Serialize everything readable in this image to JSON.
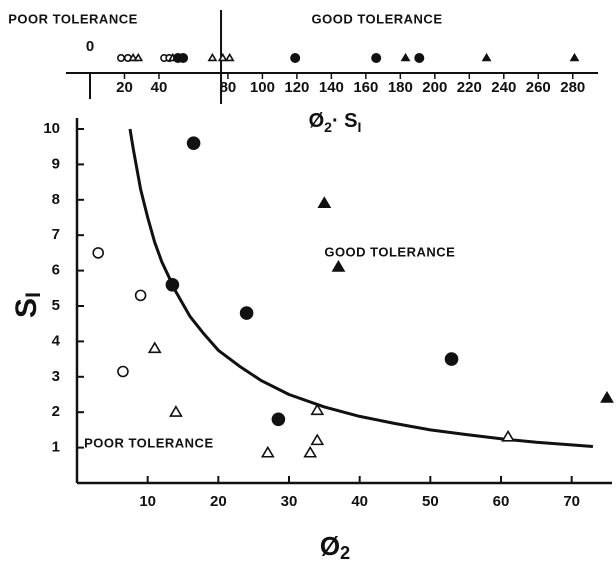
{
  "chart_data": [
    {
      "type": "strip",
      "annotations": [
        "POOR TOLERANCE",
        "GOOD TOLERANCE"
      ],
      "divider": 76,
      "xlabel": [
        "Ø",
        "2",
        "· S",
        "I"
      ],
      "xlim": [
        0,
        290
      ],
      "origin_tick": 0,
      "xticks": [
        20,
        40,
        80,
        100,
        120,
        140,
        160,
        180,
        200,
        220,
        240,
        260,
        280
      ],
      "series": [
        {
          "marker": "open-circle",
          "x": [
            18,
            22,
            43,
            46
          ]
        },
        {
          "marker": "open-triangle",
          "x": [
            25,
            28,
            48,
            71,
            77,
            81
          ]
        },
        {
          "marker": "filled-circle",
          "x": [
            51,
            54,
            119,
            166,
            191
          ]
        },
        {
          "marker": "filled-triangle",
          "x": [
            183,
            230,
            281
          ]
        }
      ]
    },
    {
      "type": "scatter",
      "annotations": [
        {
          "text": "POOR TOLERANCE",
          "x": 1,
          "y": 1.1
        },
        {
          "text": "GOOD TOLERANCE",
          "x": 35,
          "y": 6.5
        }
      ],
      "xlabel": [
        "Ø",
        "2"
      ],
      "ylabel": [
        "S",
        "I"
      ],
      "xlim": [
        0,
        75
      ],
      "ylim": [
        0,
        10
      ],
      "xticks": [
        10,
        20,
        30,
        40,
        50,
        60,
        70
      ],
      "yticks": [
        1,
        2,
        3,
        4,
        5,
        6,
        7,
        8,
        9,
        10
      ],
      "series": [
        {
          "marker": "open-circle",
          "x": [
            3,
            9,
            6.5
          ],
          "y": [
            6.5,
            5.3,
            3.15
          ]
        },
        {
          "marker": "filled-circle",
          "x": [
            16.5,
            13.5,
            24,
            28.5,
            53
          ],
          "y": [
            9.6,
            5.6,
            4.8,
            1.8,
            3.5
          ]
        },
        {
          "marker": "open-triangle",
          "x": [
            11,
            14,
            27,
            33,
            34,
            34,
            61
          ],
          "y": [
            3.8,
            2,
            0.85,
            0.85,
            2.05,
            1.2,
            1.3
          ]
        },
        {
          "marker": "filled-triangle",
          "x": [
            35,
            37,
            75
          ],
          "y": [
            7.9,
            6.1,
            2.4
          ]
        }
      ],
      "curve": {
        "x": [
          7.5,
          8,
          9,
          10,
          11,
          12,
          14,
          16,
          18,
          20,
          23,
          26,
          30,
          35,
          40,
          45,
          50,
          55,
          60,
          65,
          73
        ],
        "y": [
          10,
          9.4,
          8.3,
          7.5,
          6.8,
          6.25,
          5.4,
          4.7,
          4.2,
          3.75,
          3.3,
          2.9,
          2.5,
          2.15,
          1.88,
          1.68,
          1.5,
          1.37,
          1.25,
          1.15,
          1.03
        ]
      }
    }
  ]
}
